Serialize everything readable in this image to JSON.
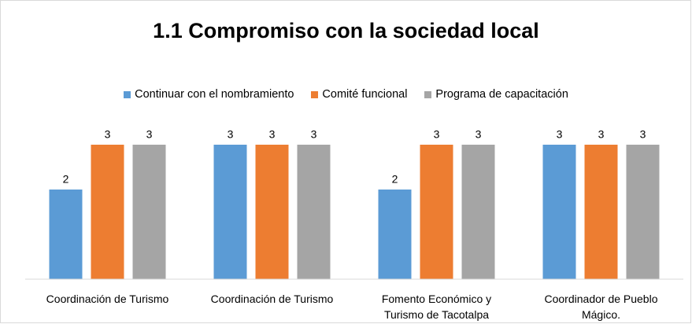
{
  "chart_data": {
    "type": "bar",
    "title": "1.1 Compromiso con la sociedad local",
    "categories": [
      "Coordinación de Turismo",
      "Coordinación de Turismo",
      "Fomento Económico y Turismo de Tacotalpa",
      "Coordinador de Pueblo Mágico."
    ],
    "series": [
      {
        "name": "Continuar con el nombramiento",
        "color": "#5b9bd5",
        "values": [
          2,
          3,
          2,
          3
        ]
      },
      {
        "name": "Comité funcional",
        "color": "#ed7d31",
        "values": [
          3,
          3,
          3,
          3
        ]
      },
      {
        "name": "Programa de capacitación",
        "color": "#a5a5a5",
        "values": [
          3,
          3,
          3,
          3
        ]
      }
    ],
    "ylim": [
      0,
      3.5
    ],
    "legend": "top",
    "grid": false
  }
}
